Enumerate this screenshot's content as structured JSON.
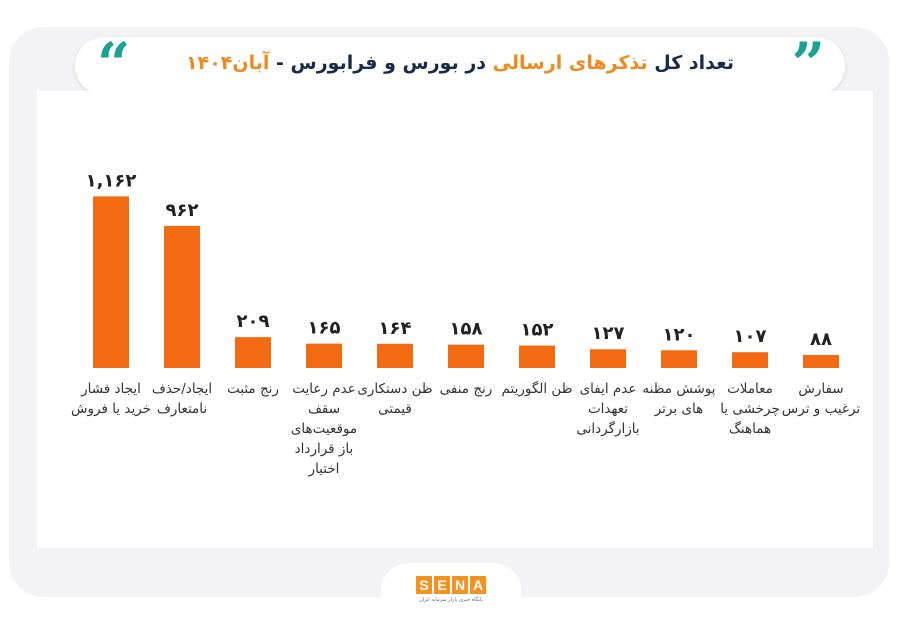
{
  "header": {
    "title_part1": "تعداد کل",
    "title_highlight": "تذکرهای ارسالی",
    "title_part2": "در بورس و فرابورس -",
    "title_date": "آبان۱۴۰۴"
  },
  "colors": {
    "bar": "#f26a12",
    "accent": "#1aa295",
    "highlight": "#f08a1c"
  },
  "logo": {
    "letters": [
      "S",
      "E",
      "N",
      "A"
    ],
    "caption": "پایگاه خبری بازار سرمایه ایران"
  },
  "chart_data": {
    "type": "bar",
    "title": "",
    "xlabel": "",
    "ylabel": "",
    "ylim": [
      0,
      1200
    ],
    "grid": false,
    "categories": [
      "ایجاد فشار خرید یا فروش",
      "ایجاد/حذف نامتعارف",
      "رنج مثبت",
      "عدم رعایت سقف موقعیت‌های باز قرارداد اختیار",
      "ظن دستکاری قیمتی",
      "رنج منفی",
      "ظن الگوریتم",
      "عدم ایفای تعهدات بازارگردانی",
      "پوشش مظنه های برتر",
      "معاملات چرخشی یا هماهنگ",
      "سفارش ترغیب و ترس"
    ],
    "values": [
      1162,
      962,
      209,
      165,
      164,
      158,
      152,
      127,
      120,
      107,
      88
    ],
    "value_labels": [
      "۱,۱۶۲",
      "۹۶۲",
      "۲۰۹",
      "۱۶۵",
      "۱۶۴",
      "۱۵۸",
      "۱۵۲",
      "۱۲۷",
      "۱۲۰",
      "۱۰۷",
      "۸۸"
    ]
  }
}
